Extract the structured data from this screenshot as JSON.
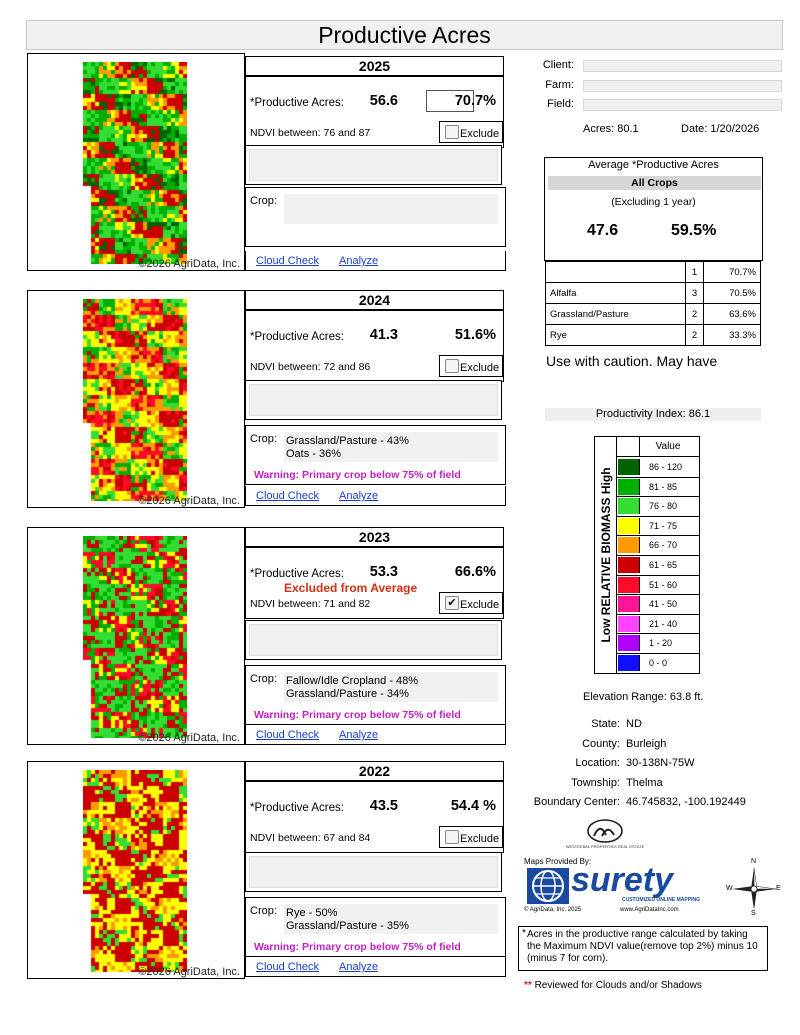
{
  "title": "Productive Acres",
  "years": [
    {
      "year": "2025",
      "pa_label": "*Productive Acres:",
      "acres": "56.6",
      "pct": "70.7",
      "pct_suffix": "%",
      "pct_boxed": true,
      "ndvi": "NDVI between: 76 and 87",
      "exclude_label": "Exclude",
      "excluded": false,
      "excluded_note": "",
      "crop_label": "Crop:",
      "crops": [],
      "warning": "",
      "map_copyright": "©2026 AgriData, Inc.",
      "cloud_check": "Cloud Check",
      "analyze": "Analyze"
    },
    {
      "year": "2024",
      "pa_label": "*Productive Acres:",
      "acres": "41.3",
      "pct": "51.6",
      "pct_suffix": "%",
      "pct_boxed": false,
      "ndvi": "NDVI between: 72 and 86",
      "exclude_label": "Exclude",
      "excluded": false,
      "excluded_note": "",
      "crop_label": "Crop:",
      "crops": [
        "Grassland/Pasture - 43%",
        "Oats - 36%"
      ],
      "warning": "Warning: Primary crop below 75% of field",
      "map_copyright": "©2026 AgriData, Inc.",
      "cloud_check": "Cloud Check",
      "analyze": "Analyze"
    },
    {
      "year": "2023",
      "pa_label": "*Productive Acres:",
      "acres": "53.3",
      "pct": "66.6",
      "pct_suffix": "%",
      "pct_boxed": false,
      "ndvi": "NDVI between: 71 and 82",
      "exclude_label": "Exclude",
      "excluded": true,
      "excluded_note": "Excluded from Average",
      "crop_label": "Crop:",
      "crops": [
        "Fallow/Idle Cropland - 48%",
        "Grassland/Pasture - 34%"
      ],
      "warning": "Warning: Primary crop below 75% of field",
      "map_copyright": "©2026 AgriData, Inc.",
      "cloud_check": "Cloud Check",
      "analyze": "Analyze"
    },
    {
      "year": "2022",
      "pa_label": "*Productive Acres:",
      "acres": "43.5",
      "pct": "54.4",
      "pct_suffix": " %",
      "pct_boxed": false,
      "ndvi": "NDVI between: 67 and 84",
      "exclude_label": "Exclude",
      "excluded": false,
      "excluded_note": "",
      "crop_label": "Crop:",
      "crops": [
        "Rye - 50%",
        "Grassland/Pasture - 35%"
      ],
      "warning": "Warning: Primary crop below 75% of field",
      "map_copyright": "©2026 AgriData, Inc.",
      "cloud_check": "Cloud Check",
      "analyze": "Analyze"
    }
  ],
  "right": {
    "client_label": "Client:",
    "farm_label": "Farm:",
    "field_label": "Field:",
    "client_value": "",
    "farm_value": "",
    "field_value": "",
    "acres_label": "Acres:",
    "acres_value": "80.1",
    "date_label": "Date:",
    "date_value": "1/20/2026"
  },
  "average": {
    "title": "Average *Productive Acres",
    "all_crops": "All Crops",
    "excluding": "(Excluding 1 year)",
    "acres": "47.6",
    "pct": "59.5%"
  },
  "crop_table": [
    {
      "crop": "",
      "count": "1",
      "pct": "70.7%"
    },
    {
      "crop": "Alfalfa",
      "count": "3",
      "pct": "70.5%"
    },
    {
      "crop": "Grassland/Pasture",
      "count": "2",
      "pct": "63.6%"
    },
    {
      "crop": "Rye",
      "count": "2",
      "pct": "33.3%"
    }
  ],
  "caution": "Use with caution. May have",
  "productivity_index": "Productivity Index: 86.1",
  "legend": {
    "side_label": "Low RELATIVE BIOMASS High",
    "header": "Value",
    "rows": [
      {
        "color": "#006400",
        "label": "86 - 120"
      },
      {
        "color": "#00b000",
        "label": "81 - 85"
      },
      {
        "color": "#33dd33",
        "label": "76 - 80"
      },
      {
        "color": "#ffff00",
        "label": "71 - 75"
      },
      {
        "color": "#ff9a00",
        "label": "66 - 70"
      },
      {
        "color": "#cc0000",
        "label": "61 - 65"
      },
      {
        "color": "#ff0a28",
        "label": "51 - 60"
      },
      {
        "color": "#ff1493",
        "label": "41 - 50"
      },
      {
        "color": "#ff44ff",
        "label": "21 - 40"
      },
      {
        "color": "#b000ff",
        "label": "1 - 20"
      },
      {
        "color": "#1010ff",
        "label": "0 - 0"
      }
    ]
  },
  "elevation": "Elevation Range: 63.8 ft.",
  "location_info": [
    {
      "label": "State:",
      "value": "ND"
    },
    {
      "label": "County:",
      "value": "Burleigh"
    },
    {
      "label": "Location:",
      "value": "30-138N-75W"
    },
    {
      "label": "Township:",
      "value": "Thelma"
    },
    {
      "label": "Boundary Center:",
      "value": "46.745832, -100.192449"
    }
  ],
  "logo": {
    "ww_line": "WESTEEBAL PROPERTIES REAL ESTATE",
    "maps_provided": "Maps Provided By:",
    "surety": "surety",
    "surety_tag": "CUSTOMIZED ONLINE MAPPING",
    "copyright": "© AgriData, Inc. 2025",
    "site": "www.AgriDataInc.com"
  },
  "compass": {
    "n": "N",
    "s": "S",
    "e": "E",
    "w": "W"
  },
  "note_star": "*",
  "note": "Acres in the productive range calculated by taking the Maximum NDVI value(remove top 2%) minus 10 (minus 7 for corn).",
  "reviewed_marks": "**",
  "reviewed": "Reviewed for Clouds and/or Shadows",
  "colors": {
    "dark_green": "#006400",
    "green": "#00b000",
    "light_green": "#33dd33",
    "yellow": "#ffff00",
    "orange": "#ff9a00",
    "red": "#cc0000",
    "bright_red": "#ff0a28",
    "warning_magenta": "#c020c0",
    "excluded_red": "#d03010",
    "link_blue": "#1a3ccf"
  }
}
